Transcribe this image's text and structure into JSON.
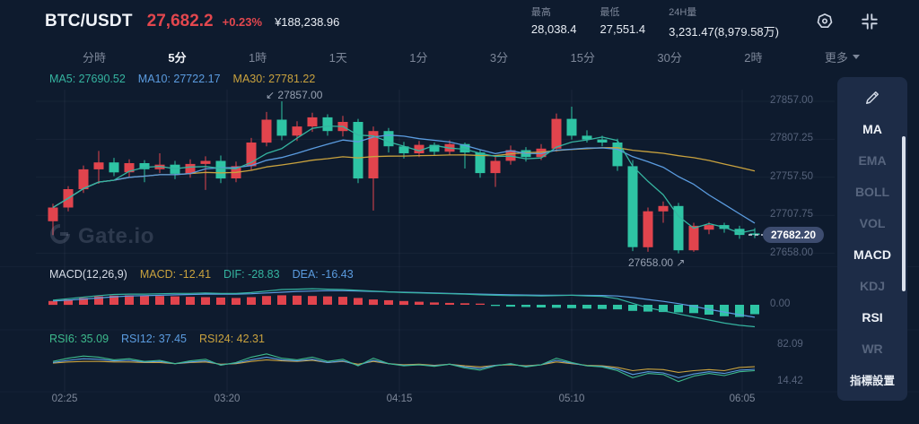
{
  "header": {
    "pair": "BTC/USDT",
    "last_price": "27,682.2",
    "change_percent": "+0.23%",
    "fiat_value": "¥188,238.96",
    "stats": [
      {
        "label": "最高",
        "value": "28,038.4"
      },
      {
        "label": "最低",
        "value": "27,551.4"
      },
      {
        "label": "24H量",
        "value": "3,231.47(8,979.58万)"
      }
    ]
  },
  "tabs": {
    "items": [
      "分時",
      "5分",
      "1時",
      "1天",
      "1分",
      "3分",
      "15分",
      "30分",
      "2時"
    ],
    "active": "5分",
    "more_label": "更多"
  },
  "ma_legend": [
    {
      "text": "MA5: 27690.52",
      "color": "#35b4a0"
    },
    {
      "text": "MA10: 27722.17",
      "color": "#5b9ce0"
    },
    {
      "text": "MA30: 27781.22",
      "color": "#c9a23e"
    }
  ],
  "macd_legend": {
    "title": "MACD(12,26,9)",
    "items": [
      {
        "text": "MACD: -12.41",
        "color": "#c9a23e"
      },
      {
        "text": "DIF: -28.83",
        "color": "#35b4a0"
      },
      {
        "text": "DEA: -16.43",
        "color": "#5b9ce0"
      }
    ]
  },
  "rsi_legend": [
    {
      "text": "RSI6: 35.09",
      "color": "#3dba8c"
    },
    {
      "text": "RSI12: 37.45",
      "color": "#5b9ce0"
    },
    {
      "text": "RSI24: 42.31",
      "color": "#c9a23e"
    }
  ],
  "annotations": {
    "high_arrow": "↙",
    "high_text": "27857.00",
    "low_text": "27658.00",
    "low_arrow": "↗"
  },
  "watermark": "Gate.io",
  "sidebar": {
    "tools": [
      {
        "label": "MA",
        "active": true
      },
      {
        "label": "EMA",
        "active": false
      },
      {
        "label": "BOLL",
        "active": false
      },
      {
        "label": "VOL",
        "active": false
      },
      {
        "label": "MACD",
        "active": true
      },
      {
        "label": "KDJ",
        "active": false
      },
      {
        "label": "RSI",
        "active": true
      },
      {
        "label": "WR",
        "active": false
      }
    ],
    "footer": "指標設置"
  },
  "colors": {
    "up": "#e1444d",
    "down": "#2ec4a4",
    "ma5": "#35b4a0",
    "ma10": "#5b9ce0",
    "ma30": "#c9a23e",
    "dif": "#35b4a0",
    "dea": "#5b9ce0",
    "rsi6": "#3dba8c",
    "rsi12": "#5b9ce0",
    "rsi24": "#c9a23e",
    "badge_bg": "#3d4c6f",
    "grid": "rgba(140,160,190,0.09)"
  },
  "chart_data": {
    "type": "candlestick",
    "pair": "BTC/USDT",
    "interval": "5分",
    "current_price": "27682.20",
    "current_price_value": 27682.2,
    "price_axis": [
      "27857.00",
      "27807.25",
      "27757.50",
      "27707.75",
      "27658.00"
    ],
    "time_axis": [
      "02:25",
      "03:20",
      "04:15",
      "05:10",
      "06:05"
    ],
    "high_annotation": 27857.0,
    "low_annotation": 27658.0,
    "candles_ohlc": [
      [
        27700,
        27723,
        27682,
        27718
      ],
      [
        27718,
        27746,
        27713,
        27742
      ],
      [
        27742,
        27773,
        27737,
        27768
      ],
      [
        27768,
        27792,
        27749,
        27777
      ],
      [
        27777,
        27783,
        27759,
        27764
      ],
      [
        27764,
        27781,
        27758,
        27776
      ],
      [
        27776,
        27780,
        27751,
        27768
      ],
      [
        27768,
        27789,
        27763,
        27774
      ],
      [
        27774,
        27779,
        27755,
        27762
      ],
      [
        27762,
        27781,
        27757,
        27775
      ],
      [
        27775,
        27785,
        27741,
        27779
      ],
      [
        27779,
        27786,
        27750,
        27756
      ],
      [
        27756,
        27778,
        27751,
        27772
      ],
      [
        27772,
        27809,
        27767,
        27803
      ],
      [
        27803,
        27843,
        27798,
        27833
      ],
      [
        27833,
        27857,
        27806,
        27812
      ],
      [
        27812,
        27831,
        27805,
        27824
      ],
      [
        27824,
        27842,
        27817,
        27836
      ],
      [
        27836,
        27840,
        27812,
        27818
      ],
      [
        27818,
        27838,
        27811,
        27830
      ],
      [
        27830,
        27834,
        27750,
        27756
      ],
      [
        27756,
        27824,
        27714,
        27818
      ],
      [
        27818,
        27822,
        27790,
        27798
      ],
      [
        27798,
        27804,
        27782,
        27789
      ],
      [
        27789,
        27805,
        27784,
        27800
      ],
      [
        27800,
        27803,
        27786,
        27791
      ],
      [
        27791,
        27806,
        27787,
        27801
      ],
      [
        27801,
        27803,
        27769,
        27790
      ],
      [
        27790,
        27794,
        27757,
        27763
      ],
      [
        27763,
        27785,
        27745,
        27779
      ],
      [
        27779,
        27799,
        27774,
        27793
      ],
      [
        27793,
        27797,
        27778,
        27784
      ],
      [
        27784,
        27801,
        27780,
        27795
      ],
      [
        27795,
        27841,
        27791,
        27834
      ],
      [
        27834,
        27850,
        27807,
        27812
      ],
      [
        27812,
        27819,
        27803,
        27807
      ],
      [
        27807,
        27812,
        27798,
        27803
      ],
      [
        27803,
        27808,
        27766,
        27772
      ],
      [
        27772,
        27780,
        27661,
        27666
      ],
      [
        27666,
        27718,
        27660,
        27713
      ],
      [
        27713,
        27726,
        27698,
        27720
      ],
      [
        27720,
        27724,
        27658,
        27662
      ],
      [
        27662,
        27698,
        27660,
        27694
      ],
      [
        27689,
        27699,
        27683,
        27695
      ],
      [
        27695,
        27698,
        27685,
        27690
      ],
      [
        27690,
        27694,
        27677,
        27682
      ],
      [
        27684,
        27691,
        27678,
        27682
      ]
    ],
    "ma_values": {
      "ma5": 27690.52,
      "ma10": 27722.17,
      "ma30": 27781.22
    },
    "macd": {
      "params": "(12,26,9)",
      "macd": -12.41,
      "dif": -28.83,
      "dea": -16.43,
      "axis": [
        "0.00"
      ],
      "hist": [
        5,
        7,
        9,
        11,
        12,
        12.5,
        12,
        11.5,
        11,
        10.5,
        10,
        9.5,
        9,
        10,
        11.5,
        12.5,
        12,
        11.5,
        11,
        10.5,
        9,
        7,
        6,
        5,
        4,
        3,
        2.5,
        2,
        1.5,
        -1.5,
        -2.5,
        -3,
        -3.5,
        -4,
        -4.5,
        -5,
        -5.5,
        -6,
        -8,
        -9,
        -9.5,
        -10,
        -11,
        -13,
        -15,
        -16,
        -12.4
      ],
      "dif_line": [
        6,
        8,
        10,
        12,
        13.5,
        14,
        14,
        14.5,
        15,
        15,
        15.5,
        15,
        15,
        16,
        18,
        20,
        20.5,
        21,
        20.5,
        20,
        19,
        18,
        17,
        16,
        15.5,
        15,
        14.5,
        14,
        13,
        12.5,
        12,
        12,
        11.5,
        12,
        12.5,
        11.5,
        11,
        8,
        2,
        -4,
        -8,
        -12,
        -16,
        -20,
        -24,
        -27,
        -28.8
      ],
      "dea_line": [
        5,
        6,
        7.5,
        9,
        10.5,
        11.5,
        12,
        12.5,
        13,
        13.5,
        14,
        14,
        14,
        14.5,
        15.5,
        16.5,
        17.5,
        18,
        18.5,
        18.5,
        18,
        17.5,
        17,
        16.5,
        16,
        15.5,
        15,
        14.5,
        14,
        13.5,
        13,
        12.8,
        12.5,
        12.5,
        12.5,
        12.4,
        12.2,
        11.5,
        9.5,
        7,
        4.5,
        1.5,
        -2,
        -6,
        -9.5,
        -13,
        -16.4
      ]
    },
    "rsi": {
      "rsi6": 35.09,
      "rsi12": 37.45,
      "rsi24": 42.31,
      "axis": [
        "82.09",
        "14.42"
      ],
      "series": {
        "rsi6": [
          52,
          58,
          62,
          60,
          55,
          57,
          52,
          54,
          48,
          53,
          56,
          45,
          50,
          60,
          66,
          58,
          55,
          60,
          52,
          56,
          44,
          58,
          48,
          44,
          46,
          43,
          47,
          40,
          36,
          44,
          48,
          42,
          46,
          58,
          50,
          44,
          42,
          35,
          22,
          30,
          28,
          15,
          25,
          30,
          26,
          33,
          35.1
        ],
        "rsi12": [
          50,
          54,
          57,
          56,
          53,
          54,
          51,
          52,
          48,
          51,
          53,
          46,
          49,
          55,
          60,
          55,
          53,
          56,
          50,
          53,
          45,
          54,
          48,
          45,
          46,
          44,
          47,
          42,
          39,
          45,
          47,
          43,
          46,
          54,
          49,
          44,
          43,
          38,
          28,
          33,
          31,
          22,
          29,
          33,
          30,
          36,
          37.5
        ],
        "rsi24": [
          49,
          51,
          52,
          52,
          51,
          51,
          50,
          50,
          48,
          50,
          51,
          47,
          48,
          52,
          55,
          53,
          52,
          54,
          50,
          52,
          47,
          52,
          48,
          46,
          47,
          45,
          47,
          44,
          42,
          45,
          46,
          44,
          46,
          51,
          48,
          45,
          44,
          41,
          35,
          38,
          37,
          32,
          35,
          37,
          35,
          41,
          42.3
        ]
      }
    }
  }
}
